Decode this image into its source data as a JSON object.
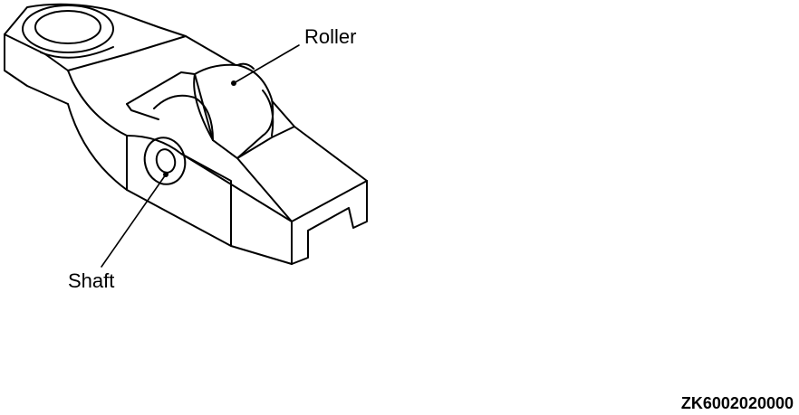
{
  "labels": {
    "roller": "Roller",
    "shaft": "Shaft"
  },
  "figure_code": "ZK6002020000"
}
